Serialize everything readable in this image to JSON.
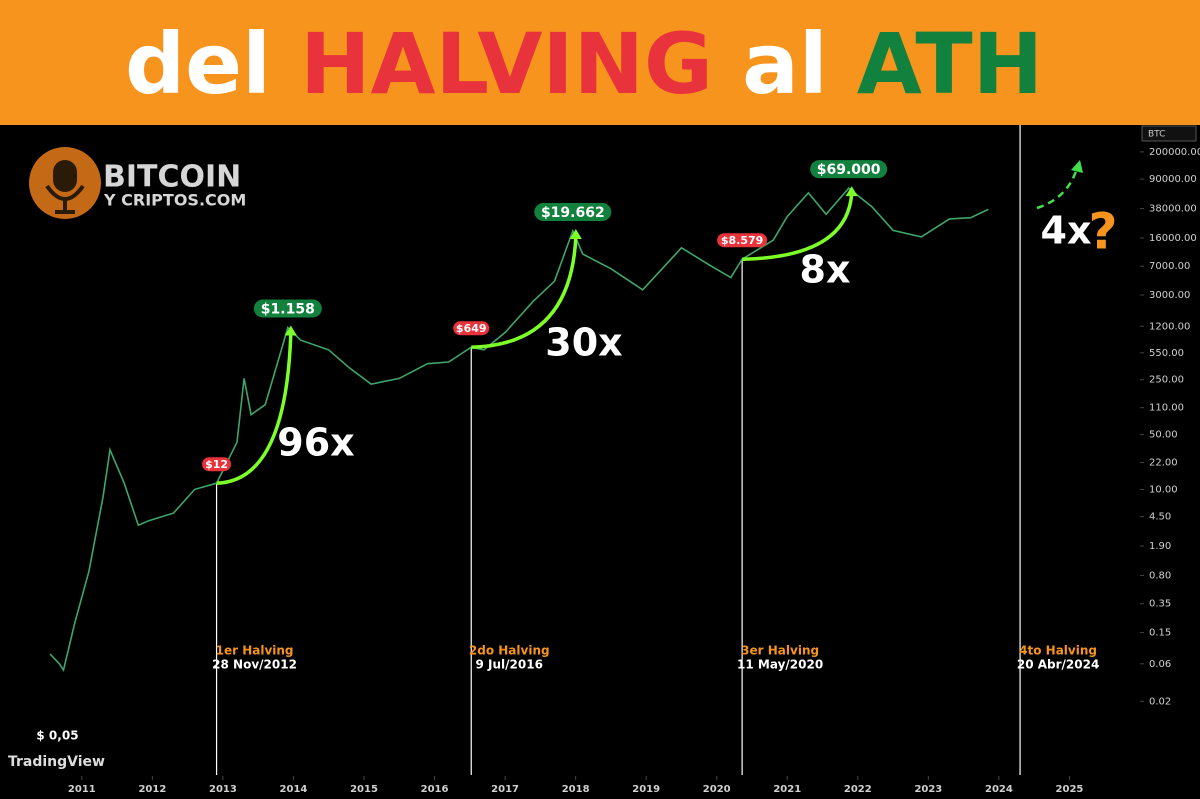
{
  "chart_data": {
    "type": "line",
    "title_parts": [
      {
        "text": "del",
        "color": "#ffffff"
      },
      {
        "text": "HALVING",
        "color": "#e8323c"
      },
      {
        "text": "al",
        "color": "#ffffff"
      },
      {
        "text": "ATH",
        "color": "#12813e"
      }
    ],
    "logo": {
      "line1": "BITCOIN",
      "line2": "Y CRIPTOS.COM"
    },
    "brand": "TradingView",
    "symbol": "BTC",
    "log_y": true,
    "xlim": [
      2009.84,
      2026.0
    ],
    "xticks": [
      2011,
      2012,
      2013,
      2014,
      2015,
      2016,
      2017,
      2018,
      2019,
      2020,
      2021,
      2022,
      2023,
      2024,
      2025
    ],
    "ylim": [
      0.0023,
      440000
    ],
    "yticks": [
      {
        "value": 200000,
        "label": "200000.00"
      },
      {
        "value": 90000,
        "label": "90000.00"
      },
      {
        "value": 38000,
        "label": "38000.00"
      },
      {
        "value": 16000,
        "label": "16000.00"
      },
      {
        "value": 7000,
        "label": "7000.00"
      },
      {
        "value": 3000,
        "label": "3000.00"
      },
      {
        "value": 1200,
        "label": "1200.00"
      },
      {
        "value": 550,
        "label": "550.00"
      },
      {
        "value": 250,
        "label": "250.00"
      },
      {
        "value": 110,
        "label": "110.00"
      },
      {
        "value": 50,
        "label": "50.00"
      },
      {
        "value": 22,
        "label": "22.00"
      },
      {
        "value": 10,
        "label": "10.00"
      },
      {
        "value": 4.5,
        "label": "4.50"
      },
      {
        "value": 1.9,
        "label": "1.90"
      },
      {
        "value": 0.8,
        "label": "0.80"
      },
      {
        "value": 0.35,
        "label": "0.35"
      },
      {
        "value": 0.15,
        "label": "0.15"
      },
      {
        "value": 0.06,
        "label": "0.06"
      },
      {
        "value": 0.02,
        "label": "0.02"
      }
    ],
    "series": [
      {
        "name": "BTC",
        "color": "#3fa66a",
        "x": [
          2010.55,
          2010.68,
          2010.74,
          2010.9,
          2011.1,
          2011.3,
          2011.4,
          2011.6,
          2011.8,
          2011.95,
          2012.3,
          2012.6,
          2012.91,
          2013.2,
          2013.3,
          2013.4,
          2013.6,
          2013.85,
          2013.92,
          2014.1,
          2014.5,
          2014.8,
          2015.1,
          2015.5,
          2015.9,
          2016.2,
          2016.52,
          2016.7,
          2017.0,
          2017.4,
          2017.7,
          2017.96,
          2018.1,
          2018.5,
          2018.95,
          2019.5,
          2019.9,
          2020.2,
          2020.36,
          2020.8,
          2021.0,
          2021.3,
          2021.55,
          2021.87,
          2022.2,
          2022.5,
          2022.9,
          2023.3,
          2023.6,
          2023.85
        ],
        "values": [
          0.08,
          0.06,
          0.05,
          0.2,
          0.9,
          8,
          32,
          12,
          3.5,
          4,
          5,
          10,
          12,
          40,
          260,
          90,
          120,
          700,
          1158,
          800,
          600,
          350,
          220,
          260,
          400,
          420,
          649,
          600,
          1000,
          2500,
          4500,
          19662,
          10000,
          6500,
          3500,
          12000,
          7200,
          5000,
          8579,
          15000,
          30000,
          60000,
          32000,
          69000,
          40000,
          20000,
          16500,
          28000,
          29000,
          37000
        ]
      }
    ],
    "price_labels": [
      {
        "x": 2012.91,
        "value": 12,
        "label": "$12",
        "color": "#e8323c"
      },
      {
        "x": 2013.92,
        "value": 1158,
        "label": "$1.158",
        "color": "#12813e"
      },
      {
        "x": 2016.52,
        "value": 649,
        "label": "$649",
        "color": "#e8323c"
      },
      {
        "x": 2017.96,
        "value": 19662,
        "label": "$19.662",
        "color": "#12813e"
      },
      {
        "x": 2020.36,
        "value": 8579,
        "label": "$8.579",
        "color": "#e8323c"
      },
      {
        "x": 2021.87,
        "value": 69000,
        "label": "$69.000",
        "color": "#12813e"
      }
    ],
    "low_label": {
      "x": 2010.74,
      "value": 0.05,
      "label": "$ 0,05"
    },
    "multipliers": [
      "96x",
      "30x",
      "8x",
      "4x"
    ],
    "question": "?",
    "halvings": [
      {
        "x": 2012.91,
        "name": "1er Halving",
        "date": "28 Nov/2012"
      },
      {
        "x": 2016.52,
        "name": "2do Halving",
        "date": "9 Jul/2016"
      },
      {
        "x": 2020.36,
        "name": "3er Halving",
        "date": "11 May/2020"
      },
      {
        "x": 2024.3,
        "name": "4to Halving",
        "date": "20 Abr/2024"
      }
    ]
  }
}
